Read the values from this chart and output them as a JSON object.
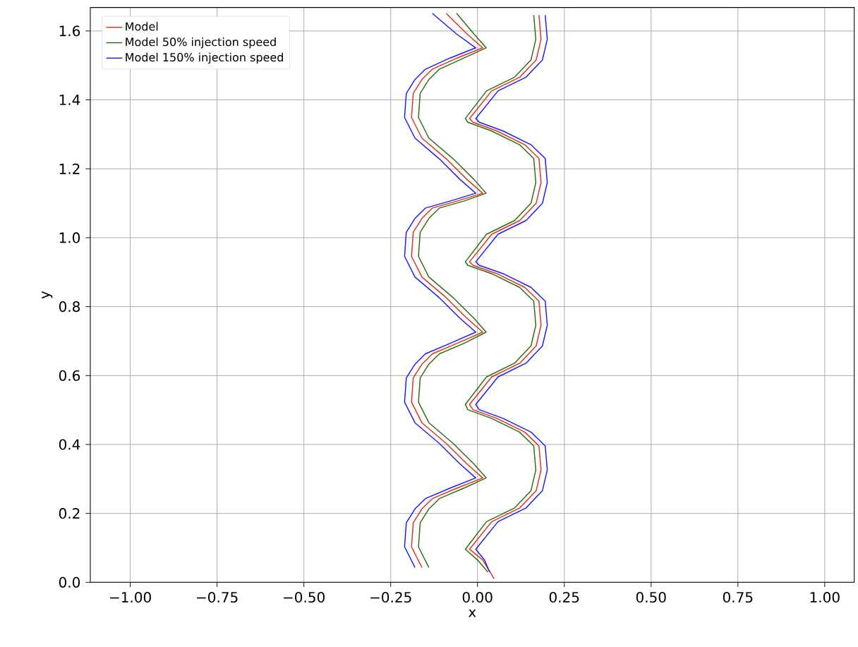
{
  "chart_data": {
    "type": "line",
    "xlabel": "x",
    "ylabel": "y",
    "xlim": [
      -1.115,
      1.085
    ],
    "ylim": [
      0,
      1.668
    ],
    "xticks": [
      {
        "value": -1,
        "label": "−1.00"
      },
      {
        "value": -0.75,
        "label": "−0.75"
      },
      {
        "value": -0.5,
        "label": "−0.50"
      },
      {
        "value": -0.25,
        "label": "−0.25"
      },
      {
        "value": 0,
        "label": "0.00"
      },
      {
        "value": 0.25,
        "label": "0.25"
      },
      {
        "value": 0.5,
        "label": "0.50"
      },
      {
        "value": 0.75,
        "label": "0.75"
      },
      {
        "value": 1,
        "label": "1.00"
      }
    ],
    "yticks": [
      {
        "value": 0,
        "label": "0.0"
      },
      {
        "value": 0.2,
        "label": "0.2"
      },
      {
        "value": 0.4,
        "label": "0.4"
      },
      {
        "value": 0.6,
        "label": "0.6"
      },
      {
        "value": 0.8,
        "label": "0.8"
      },
      {
        "value": 1.0,
        "label": "1.0"
      },
      {
        "value": 1.2,
        "label": "1.2"
      },
      {
        "value": 1.4,
        "label": "1.4"
      },
      {
        "value": 1.6,
        "label": "1.6"
      }
    ],
    "grid": true,
    "legend": "top left",
    "series": [
      {
        "name": "Model",
        "color": "#e0301e",
        "x": [
          -0.16,
          -0.19,
          -0.185,
          -0.16,
          -0.13,
          -0.06,
          0.015,
          -0.03,
          -0.09,
          -0.16,
          -0.19,
          -0.185,
          -0.16,
          -0.13,
          -0.06,
          0.015,
          -0.03,
          -0.09,
          -0.16,
          -0.19,
          -0.185,
          -0.16,
          -0.13,
          -0.06,
          0.015,
          -0.03,
          -0.09,
          -0.16,
          -0.19,
          -0.185,
          -0.16,
          -0.13,
          -0.06,
          0.015,
          -0.03,
          -0.09,
          null,
          0.048,
          0.015,
          -0.023,
          0.041,
          0.122,
          0.169,
          0.183,
          0.177,
          0.136,
          0.055,
          -0.013,
          -0.023,
          0.041,
          0.122,
          0.169,
          0.183,
          0.177,
          0.136,
          0.055,
          -0.013,
          -0.023,
          0.041,
          0.122,
          0.169,
          0.183,
          0.177,
          0.136,
          0.055,
          -0.013,
          -0.023,
          0.041,
          0.122,
          0.169,
          0.183,
          0.177
        ],
        "values": [
          0.043,
          0.103,
          0.173,
          0.213,
          0.243,
          0.273,
          0.303,
          0.343,
          0.403,
          0.463,
          0.523,
          0.593,
          0.633,
          0.663,
          0.693,
          0.726,
          0.766,
          0.826,
          0.886,
          0.946,
          1.016,
          1.056,
          1.086,
          1.106,
          1.129,
          1.169,
          1.229,
          1.289,
          1.349,
          1.419,
          1.459,
          1.489,
          1.521,
          1.551,
          1.591,
          1.651,
          null,
          0.01,
          0.065,
          0.096,
          0.176,
          0.216,
          0.266,
          0.326,
          0.396,
          0.436,
          0.476,
          0.501,
          0.516,
          0.596,
          0.636,
          0.686,
          0.746,
          0.816,
          0.856,
          0.896,
          0.92,
          0.93,
          1.01,
          1.05,
          1.1,
          1.16,
          1.23,
          1.27,
          1.31,
          1.335,
          1.346,
          1.426,
          1.466,
          1.516,
          1.576,
          1.646
        ]
      },
      {
        "name": "Model 50% injection speed",
        "color": "#2e6e0e",
        "x": [
          -0.14,
          -0.17,
          -0.165,
          -0.14,
          -0.11,
          -0.04,
          0.025,
          -0.01,
          -0.07,
          -0.14,
          -0.17,
          -0.165,
          -0.14,
          -0.11,
          -0.04,
          0.025,
          -0.01,
          -0.07,
          -0.14,
          -0.17,
          -0.165,
          -0.14,
          -0.11,
          -0.04,
          0.025,
          -0.01,
          -0.07,
          -0.14,
          -0.17,
          -0.165,
          -0.14,
          -0.11,
          -0.04,
          0.025,
          -0.01,
          -0.06,
          null,
          0.03,
          0.0,
          -0.035,
          0.026,
          0.107,
          0.154,
          0.168,
          0.162,
          0.121,
          0.04,
          -0.028,
          -0.035,
          0.026,
          0.107,
          0.154,
          0.168,
          0.162,
          0.121,
          0.04,
          -0.028,
          -0.035,
          0.026,
          0.107,
          0.154,
          0.168,
          0.162,
          0.121,
          0.04,
          -0.028,
          -0.035,
          0.026,
          0.107,
          0.154,
          0.168,
          0.162
        ],
        "values": [
          0.043,
          0.103,
          0.173,
          0.213,
          0.243,
          0.273,
          0.303,
          0.343,
          0.403,
          0.463,
          0.523,
          0.593,
          0.633,
          0.663,
          0.693,
          0.726,
          0.766,
          0.826,
          0.886,
          0.946,
          1.016,
          1.056,
          1.086,
          1.106,
          1.129,
          1.169,
          1.229,
          1.289,
          1.349,
          1.419,
          1.459,
          1.489,
          1.521,
          1.551,
          1.591,
          1.651,
          null,
          0.03,
          0.065,
          0.096,
          0.176,
          0.216,
          0.266,
          0.326,
          0.396,
          0.436,
          0.476,
          0.501,
          0.516,
          0.596,
          0.636,
          0.686,
          0.746,
          0.816,
          0.856,
          0.896,
          0.92,
          0.93,
          1.01,
          1.05,
          1.1,
          1.16,
          1.23,
          1.27,
          1.31,
          1.335,
          1.346,
          1.426,
          1.466,
          1.516,
          1.576,
          1.646
        ]
      },
      {
        "name": "Model 150% injection speed",
        "color": "#1a1aff",
        "x": [
          -0.18,
          -0.21,
          -0.205,
          -0.18,
          -0.15,
          -0.08,
          -0.005,
          -0.05,
          -0.11,
          -0.18,
          -0.21,
          -0.205,
          -0.18,
          -0.15,
          -0.08,
          -0.005,
          -0.05,
          -0.11,
          -0.18,
          -0.21,
          -0.205,
          -0.18,
          -0.15,
          -0.08,
          -0.005,
          -0.05,
          -0.11,
          -0.18,
          -0.21,
          -0.205,
          -0.18,
          -0.15,
          -0.08,
          -0.005,
          -0.06,
          -0.13,
          null,
          0.035,
          0.02,
          -0.005,
          0.059,
          0.14,
          0.187,
          0.201,
          0.195,
          0.154,
          0.073,
          0.005,
          -0.005,
          0.059,
          0.14,
          0.187,
          0.201,
          0.195,
          0.154,
          0.073,
          0.005,
          -0.005,
          0.059,
          0.14,
          0.187,
          0.201,
          0.195,
          0.154,
          0.073,
          0.005,
          -0.005,
          0.059,
          0.14,
          0.187,
          0.201,
          0.195
        ],
        "values": [
          0.043,
          0.103,
          0.173,
          0.213,
          0.243,
          0.273,
          0.303,
          0.343,
          0.403,
          0.463,
          0.523,
          0.593,
          0.633,
          0.663,
          0.693,
          0.726,
          0.766,
          0.826,
          0.886,
          0.946,
          1.016,
          1.056,
          1.086,
          1.106,
          1.129,
          1.169,
          1.229,
          1.289,
          1.349,
          1.419,
          1.459,
          1.489,
          1.521,
          1.551,
          1.591,
          1.651,
          null,
          0.03,
          0.065,
          0.096,
          0.176,
          0.216,
          0.266,
          0.326,
          0.396,
          0.436,
          0.476,
          0.501,
          0.516,
          0.596,
          0.636,
          0.686,
          0.746,
          0.816,
          0.856,
          0.896,
          0.92,
          0.93,
          1.01,
          1.05,
          1.1,
          1.16,
          1.23,
          1.27,
          1.31,
          1.335,
          1.346,
          1.426,
          1.466,
          1.516,
          1.576,
          1.646
        ]
      }
    ]
  }
}
